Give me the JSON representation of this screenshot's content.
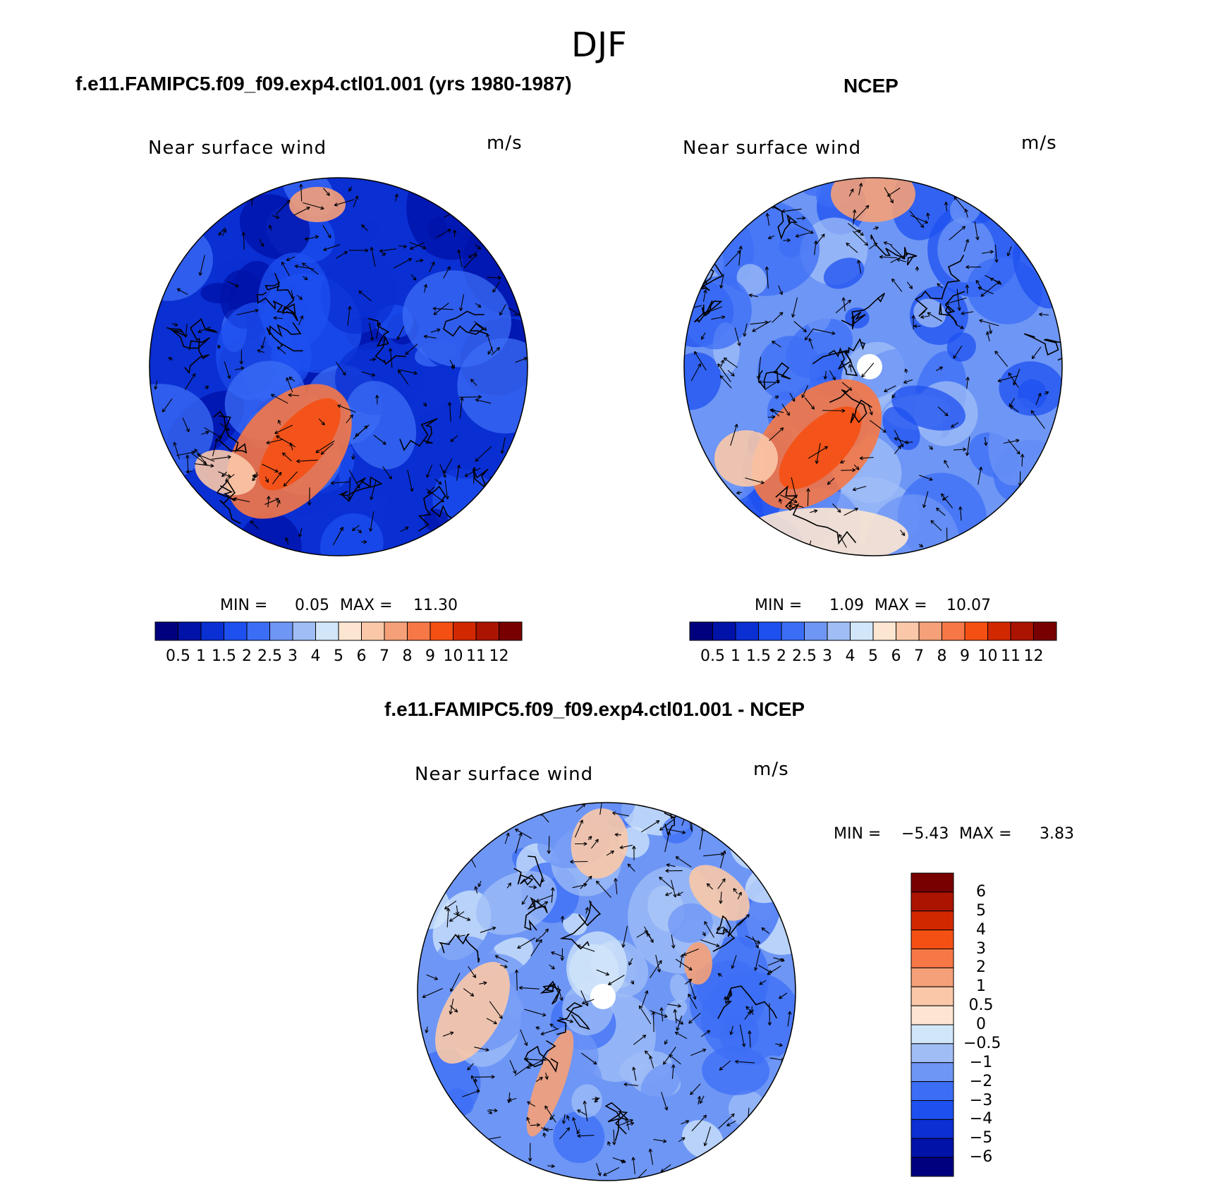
{
  "figure": {
    "title": "DJF"
  },
  "panels": [
    {
      "id": "model",
      "title": "f.e11.FAMIPC5.f09_f09.exp4.ctl01.001 (yrs 1980-1987)",
      "subtitle": "Near surface wind",
      "units": "m/s",
      "min_label": "MIN =",
      "min_value": "0.05",
      "max_label": "MAX =",
      "max_value": "11.30",
      "colorbar": {
        "labels": [
          "0.5",
          "1",
          "1.5",
          "2",
          "2.5",
          "3",
          "4",
          "5",
          "6",
          "7",
          "8",
          "9",
          "10",
          "11",
          "12"
        ],
        "colors": [
          "#00007f",
          "#0012a8",
          "#0a2fd2",
          "#1e50f0",
          "#3c6ef5",
          "#6e96f5",
          "#a0bef5",
          "#d2e6fa",
          "#fce6d2",
          "#fac8a8",
          "#f5a078",
          "#f57846",
          "#f55014",
          "#d22800",
          "#aa1400",
          "#780000"
        ]
      }
    },
    {
      "id": "obs",
      "title": "NCEP",
      "subtitle": "Near surface wind",
      "units": "m/s",
      "min_label": "MIN =",
      "min_value": "1.09",
      "max_label": "MAX =",
      "max_value": "10.07",
      "colorbar": {
        "labels": [
          "0.5",
          "1",
          "1.5",
          "2",
          "2.5",
          "3",
          "4",
          "5",
          "6",
          "7",
          "8",
          "9",
          "10",
          "11",
          "12"
        ],
        "colors": [
          "#00007f",
          "#0012a8",
          "#0a2fd2",
          "#1e50f0",
          "#3c6ef5",
          "#6e96f5",
          "#a0bef5",
          "#d2e6fa",
          "#fce6d2",
          "#fac8a8",
          "#f5a078",
          "#f57846",
          "#f55014",
          "#d22800",
          "#aa1400",
          "#780000"
        ]
      }
    },
    {
      "id": "diff",
      "title": "f.e11.FAMIPC5.f09_f09.exp4.ctl01.001 - NCEP",
      "subtitle": "Near surface wind",
      "units": "m/s",
      "min_label": "MIN =",
      "min_value": "−5.43",
      "max_label": "MAX =",
      "max_value": "3.83",
      "colorbar": {
        "labels": [
          "6",
          "5",
          "4",
          "3",
          "2",
          "1",
          "0.5",
          "0",
          "−0.5",
          "−1",
          "−2",
          "−3",
          "−4",
          "−5",
          "−6"
        ],
        "colors": [
          "#780000",
          "#aa1400",
          "#d22800",
          "#f55014",
          "#f57846",
          "#f5a078",
          "#fac8a8",
          "#fce6d2",
          "#d2e6fa",
          "#a0bef5",
          "#6e96f5",
          "#3c6ef5",
          "#1e50f0",
          "#0a2fd2",
          "#0012a8",
          "#00007f"
        ]
      }
    }
  ],
  "map": {
    "projection": "north-polar-stereographic",
    "palette_field": {
      "model": [
        "#0a2fd2",
        "#1e50f0",
        "#0012a8",
        "#3c6ef5"
      ],
      "obs": [
        "#6e96f5",
        "#a0bef5",
        "#3c6ef5",
        "#1e50f0"
      ],
      "diff": [
        "#6e96f5",
        "#a0bef5",
        "#3c6ef5",
        "#d2e6fa"
      ]
    }
  }
}
